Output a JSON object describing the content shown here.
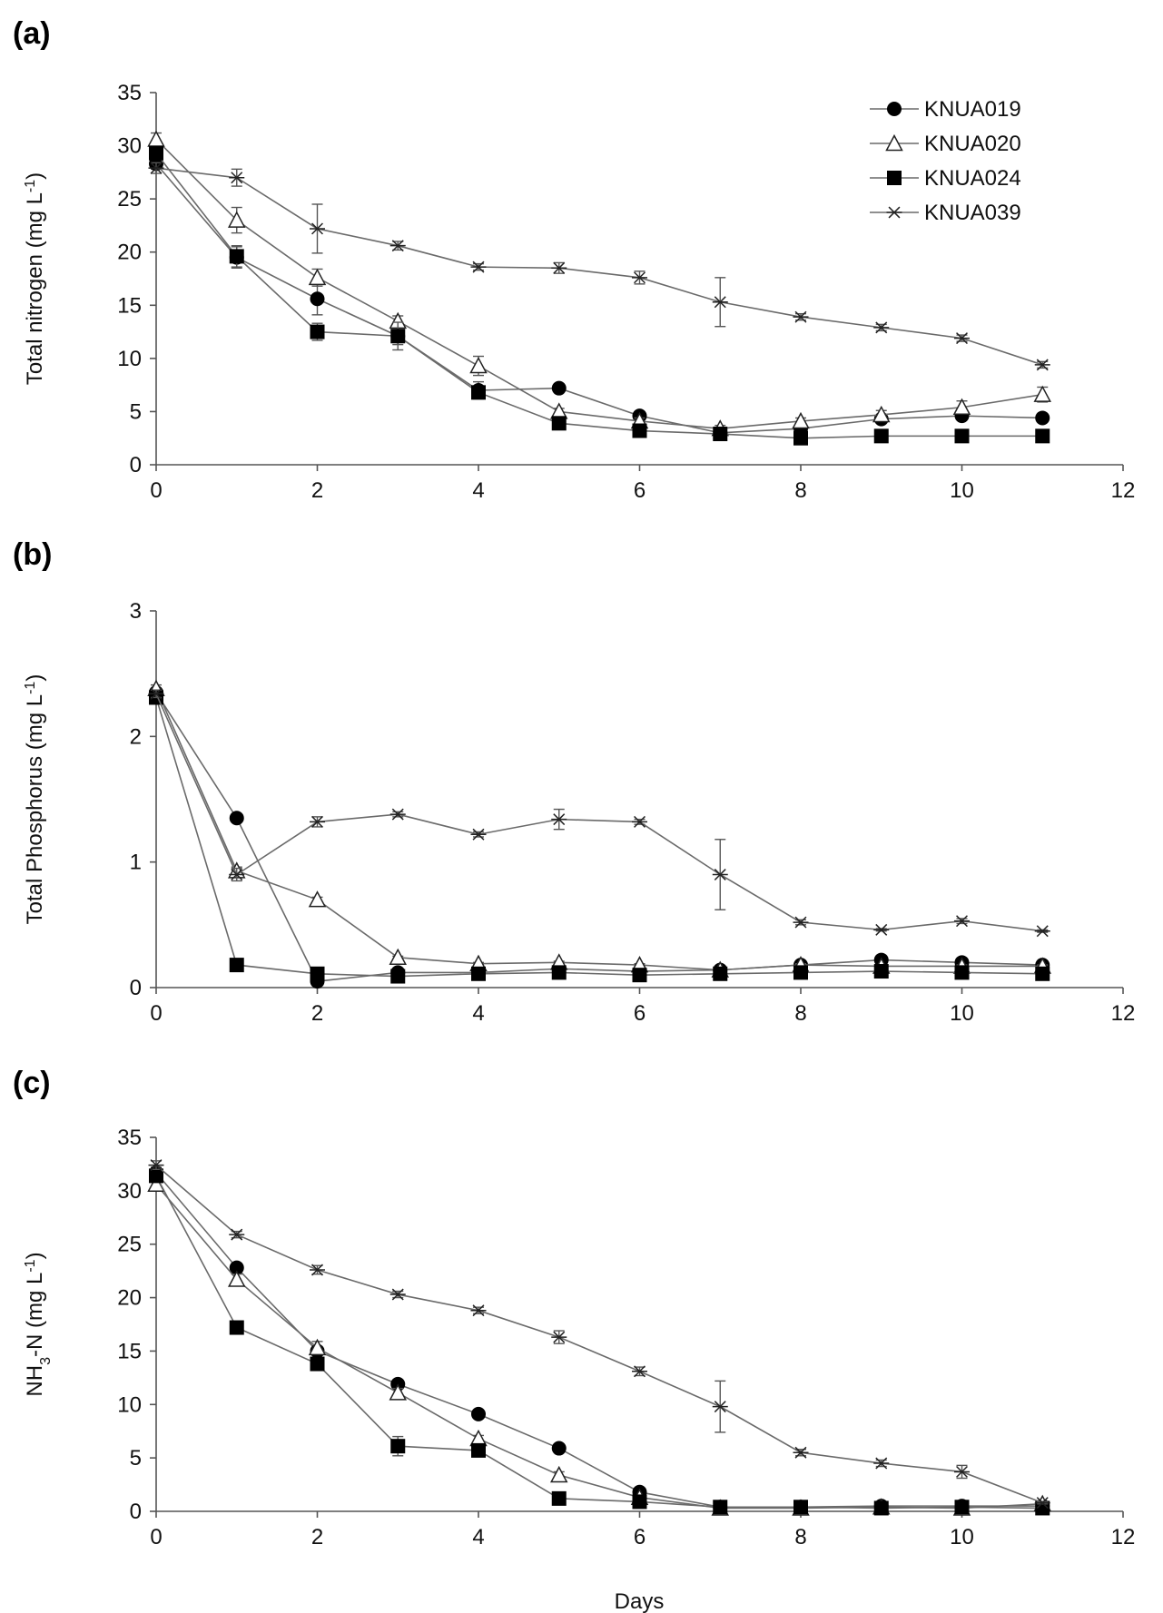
{
  "figure": {
    "x_label": "Days"
  },
  "chart_data": [
    {
      "panel": "(a)",
      "type": "line",
      "ylabel": "Total nitrogen (mg L-1)",
      "ylabel_parts": [
        "Total nitrogen (mg L",
        "-1",
        ")"
      ],
      "xlim": [
        0,
        12
      ],
      "ylim": [
        0,
        35
      ],
      "xticks": [
        "0",
        "2",
        "4",
        "6",
        "8",
        "10",
        "12"
      ],
      "xtick_values": [
        0,
        2,
        4,
        6,
        8,
        10,
        12
      ],
      "yticks": [
        "0",
        "5",
        "10",
        "15",
        "20",
        "25",
        "30",
        "35"
      ],
      "ytick_values": [
        0,
        5,
        10,
        15,
        20,
        25,
        30,
        35
      ],
      "legend_position": "top-right",
      "x": [
        0,
        1,
        2,
        3,
        4,
        5,
        6,
        7,
        8,
        9,
        10,
        11
      ],
      "series": [
        {
          "name": "KNUA019",
          "marker": "circle",
          "values": [
            28.3,
            19.5,
            15.6,
            12.1,
            7.0,
            7.2,
            4.6,
            3.0,
            3.4,
            4.3,
            4.6,
            4.4
          ],
          "errors": [
            0.5,
            1.0,
            1.5,
            0.8,
            0.8,
            0.3,
            0.3,
            0.2,
            0.3,
            0.3,
            0.3,
            0.2
          ]
        },
        {
          "name": "KNUA020",
          "marker": "triangle",
          "values": [
            30.6,
            23.0,
            17.6,
            13.5,
            9.3,
            5.0,
            4.1,
            3.4,
            4.1,
            4.7,
            5.4,
            6.6
          ],
          "errors": [
            0.6,
            1.2,
            0.8,
            0.5,
            0.9,
            0.3,
            0.3,
            0.3,
            0.3,
            0.4,
            0.6,
            0.7
          ]
        },
        {
          "name": "KNUA024",
          "marker": "square",
          "values": [
            29.3,
            19.6,
            12.5,
            12.1,
            6.8,
            3.9,
            3.2,
            2.9,
            2.5,
            2.7,
            2.7,
            2.7
          ],
          "errors": [
            0.6,
            1.0,
            0.8,
            1.3,
            0.6,
            0.3,
            0.2,
            0.2,
            0.2,
            0.2,
            0.2,
            0.2
          ]
        },
        {
          "name": "KNUA039",
          "marker": "star",
          "values": [
            27.9,
            27.0,
            22.2,
            20.6,
            18.6,
            18.5,
            17.6,
            15.3,
            13.9,
            12.9,
            11.9,
            9.4
          ],
          "errors": [
            0.5,
            0.8,
            2.3,
            0.4,
            0.3,
            0.5,
            0.6,
            2.3,
            0.3,
            0.3,
            0.3,
            0.3
          ]
        }
      ]
    },
    {
      "panel": "(b)",
      "type": "line",
      "ylabel": "Total Phosphorus (mg L-1)",
      "ylabel_parts": [
        "Total Phosphorus (mg L",
        "-1",
        ")"
      ],
      "xlim": [
        0,
        12
      ],
      "ylim": [
        0,
        3
      ],
      "xticks": [
        "0",
        "2",
        "4",
        "6",
        "8",
        "10",
        "12"
      ],
      "xtick_values": [
        0,
        2,
        4,
        6,
        8,
        10,
        12
      ],
      "yticks": [
        "0",
        "1",
        "2",
        "3"
      ],
      "ytick_values": [
        0,
        1,
        2,
        3
      ],
      "x": [
        0,
        1,
        2,
        3,
        4,
        5,
        6,
        7,
        8,
        9,
        10,
        11
      ],
      "series": [
        {
          "name": "KNUA019",
          "marker": "circle",
          "values": [
            2.35,
            1.35,
            0.05,
            0.12,
            0.12,
            0.15,
            0.13,
            0.14,
            0.18,
            0.22,
            0.2,
            0.18
          ],
          "errors": [
            0.03,
            0.02,
            0.01,
            0.01,
            0.01,
            0.01,
            0.01,
            0.01,
            0.01,
            0.02,
            0.01,
            0.01
          ]
        },
        {
          "name": "KNUA020",
          "marker": "triangle",
          "values": [
            2.38,
            0.93,
            0.7,
            0.24,
            0.19,
            0.2,
            0.18,
            0.14,
            0.18,
            0.17,
            0.17,
            0.17
          ],
          "errors": [
            0.03,
            0.03,
            0.02,
            0.01,
            0.01,
            0.01,
            0.01,
            0.01,
            0.01,
            0.01,
            0.01,
            0.01
          ]
        },
        {
          "name": "KNUA024",
          "marker": "square",
          "values": [
            2.31,
            0.18,
            0.11,
            0.09,
            0.11,
            0.12,
            0.1,
            0.11,
            0.12,
            0.13,
            0.12,
            0.11
          ],
          "errors": [
            0.03,
            0.01,
            0.01,
            0.01,
            0.01,
            0.01,
            0.01,
            0.01,
            0.01,
            0.01,
            0.01,
            0.01
          ]
        },
        {
          "name": "KNUA039",
          "marker": "star",
          "values": [
            2.34,
            0.9,
            1.32,
            1.38,
            1.22,
            1.34,
            1.32,
            0.9,
            0.52,
            0.46,
            0.53,
            0.45
          ],
          "errors": [
            0.03,
            0.05,
            0.04,
            0.02,
            0.02,
            0.08,
            0.02,
            0.28,
            0.02,
            0.01,
            0.02,
            0.01
          ]
        }
      ]
    },
    {
      "panel": "(c)",
      "type": "line",
      "ylabel": "NH3-N (mg L-1)",
      "ylabel_parts": [
        "NH",
        "3",
        "-N (mg L",
        "-1",
        ")"
      ],
      "xlabel": "Days",
      "xlim": [
        0,
        12
      ],
      "ylim": [
        0,
        35
      ],
      "xticks": [
        "0",
        "2",
        "4",
        "6",
        "8",
        "10",
        "12"
      ],
      "xtick_values": [
        0,
        2,
        4,
        6,
        8,
        10,
        12
      ],
      "yticks": [
        "0",
        "5",
        "10",
        "15",
        "20",
        "25",
        "30",
        "35"
      ],
      "ytick_values": [
        0,
        5,
        10,
        15,
        20,
        25,
        30,
        35
      ],
      "x": [
        0,
        1,
        2,
        3,
        4,
        5,
        6,
        7,
        8,
        9,
        10,
        11
      ],
      "series": [
        {
          "name": "KNUA019",
          "marker": "circle",
          "values": [
            31.7,
            22.8,
            15.0,
            11.9,
            9.1,
            5.9,
            1.8,
            0.4,
            0.4,
            0.5,
            0.5,
            0.5
          ],
          "errors": [
            0.5,
            0.4,
            0.4,
            0.4,
            0.3,
            0.3,
            0.3,
            0.1,
            0.1,
            0.1,
            0.1,
            0.1
          ]
        },
        {
          "name": "KNUA020",
          "marker": "triangle",
          "values": [
            30.6,
            21.7,
            15.3,
            11.1,
            6.8,
            3.4,
            1.3,
            0.3,
            0.3,
            0.4,
            0.3,
            0.7
          ],
          "errors": [
            0.5,
            0.5,
            0.6,
            0.4,
            0.3,
            0.3,
            0.2,
            0.1,
            0.1,
            0.1,
            0.1,
            0.1
          ]
        },
        {
          "name": "KNUA024",
          "marker": "square",
          "values": [
            31.4,
            17.2,
            13.8,
            6.1,
            5.7,
            1.2,
            0.9,
            0.4,
            0.4,
            0.3,
            0.4,
            0.3
          ],
          "errors": [
            0.5,
            0.3,
            0.4,
            0.9,
            0.4,
            0.2,
            0.2,
            0.1,
            0.1,
            0.1,
            0.1,
            0.1
          ]
        },
        {
          "name": "KNUA039",
          "marker": "star",
          "values": [
            32.4,
            25.9,
            22.6,
            20.3,
            18.8,
            16.3,
            13.1,
            9.8,
            5.5,
            4.5,
            3.7,
            0.8
          ],
          "errors": [
            0.4,
            0.3,
            0.4,
            0.3,
            0.3,
            0.6,
            0.4,
            2.4,
            0.3,
            0.3,
            0.6,
            0.1
          ]
        }
      ]
    }
  ]
}
